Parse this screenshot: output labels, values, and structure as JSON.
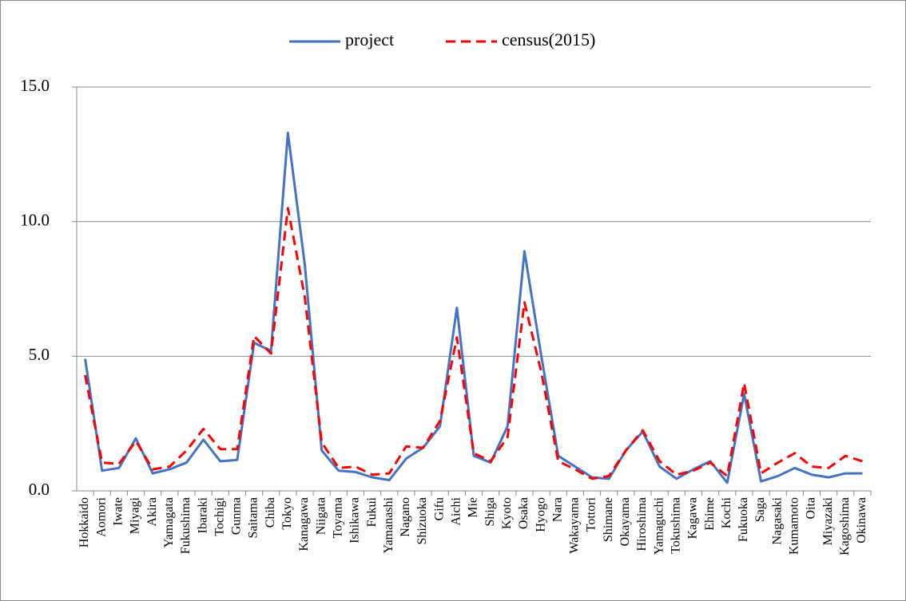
{
  "chart_data": {
    "type": "line",
    "categories": [
      "Hokkaido",
      "Aomori",
      "Iwate",
      "Miyagi",
      "Akira",
      "Yamagata",
      "Fukushima",
      "Ibaraki",
      "Tochigi",
      "Gunma",
      "Saitama",
      "Chiba",
      "Tokyo",
      "Kanagawa",
      "Niigata",
      "Toyama",
      "Ishikawa",
      "Fukui",
      "Yamanashi",
      "Nagano",
      "Shizuoka",
      "Gifu",
      "Aichi",
      "Mie",
      "Shiga",
      "Kyoto",
      "Osaka",
      "Hyogo",
      "Nara",
      "Wakayama",
      "Tottori",
      "Shimane",
      "Okayama",
      "Hiroshima",
      "Yamaguchi",
      "Tokushima",
      "Kagawa",
      "Ehime",
      "Kochi",
      "Fukuoka",
      "Saga",
      "Nagasaki",
      "Kumamoto",
      "Oita",
      "Miyazaki",
      "Kagoshima",
      "Okinawa"
    ],
    "series": [
      {
        "name": "project",
        "color": "#4472c4",
        "dash": false,
        "values": [
          4.9,
          0.75,
          0.85,
          1.95,
          0.65,
          0.8,
          1.05,
          1.9,
          1.1,
          1.15,
          5.5,
          5.2,
          13.3,
          8.4,
          1.5,
          0.75,
          0.7,
          0.5,
          0.4,
          1.2,
          1.6,
          2.4,
          6.8,
          1.3,
          1.05,
          2.4,
          8.9,
          5.0,
          1.3,
          0.9,
          0.5,
          0.45,
          1.5,
          2.2,
          0.9,
          0.45,
          0.8,
          1.1,
          0.3,
          3.6,
          0.35,
          0.55,
          0.85,
          0.6,
          0.5,
          0.65,
          0.65
        ]
      },
      {
        "name": "census(2015)",
        "color": "#ff0000",
        "dash": true,
        "values": [
          4.3,
          1.05,
          1.0,
          1.85,
          0.8,
          0.9,
          1.5,
          2.3,
          1.55,
          1.55,
          5.75,
          5.1,
          10.5,
          7.2,
          1.8,
          0.85,
          0.9,
          0.6,
          0.65,
          1.65,
          1.6,
          2.6,
          5.7,
          1.4,
          1.1,
          2.0,
          7.0,
          4.4,
          1.1,
          0.8,
          0.45,
          0.55,
          1.5,
          2.25,
          1.1,
          0.6,
          0.75,
          1.05,
          0.55,
          4.0,
          0.65,
          1.05,
          1.4,
          0.9,
          0.85,
          1.3,
          1.1
        ]
      }
    ],
    "ylim": [
      0,
      15
    ],
    "yticks": [
      {
        "value": 0,
        "label": "0.0"
      },
      {
        "value": 5,
        "label": "5.0"
      },
      {
        "value": 10,
        "label": "10.0"
      },
      {
        "value": 15,
        "label": "15.0"
      }
    ],
    "grid": true,
    "legend": "top"
  }
}
